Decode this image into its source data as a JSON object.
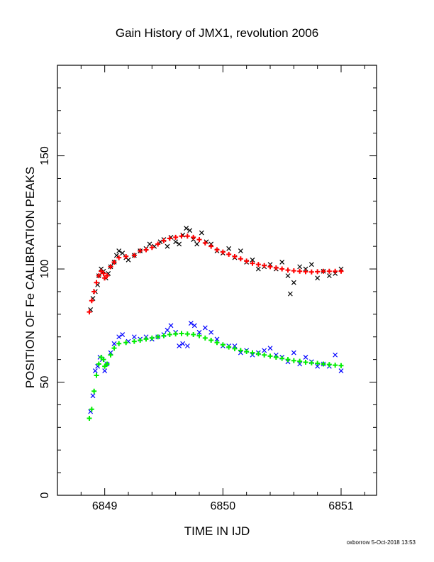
{
  "chart_data": {
    "type": "scatter",
    "title": "Gain History of JMX1, revolution 2006",
    "xlabel": "TIME IN IJD",
    "ylabel": "POSITION OF Fe CALIBRATION PEAKS",
    "xlim": [
      6848.6,
      6851.3
    ],
    "ylim": [
      0,
      190
    ],
    "x_ticks": [
      6849,
      6850,
      6851
    ],
    "x_tick_labels": [
      "6849",
      "6850",
      "6851"
    ],
    "y_ticks": [
      0,
      50,
      100,
      150
    ],
    "y_tick_labels": [
      "0",
      "50",
      "100",
      "150"
    ],
    "grid": false,
    "legend": "none",
    "series": [
      {
        "marker": "x",
        "color": "#000000",
        "points": [
          [
            6848.88,
            82
          ],
          [
            6848.9,
            87
          ],
          [
            6848.92,
            90
          ],
          [
            6848.94,
            93
          ],
          [
            6848.95,
            97
          ],
          [
            6848.97,
            100
          ],
          [
            6848.99,
            99
          ],
          [
            6849.01,
            96
          ],
          [
            6849.03,
            98
          ],
          [
            6849.05,
            101
          ],
          [
            6849.08,
            103
          ],
          [
            6849.1,
            106
          ],
          [
            6849.12,
            108
          ],
          [
            6849.15,
            107
          ],
          [
            6849.18,
            105
          ],
          [
            6849.2,
            104
          ],
          [
            6849.25,
            106
          ],
          [
            6849.3,
            108
          ],
          [
            6849.35,
            109
          ],
          [
            6849.38,
            111
          ],
          [
            6849.42,
            110
          ],
          [
            6849.47,
            112
          ],
          [
            6849.5,
            113
          ],
          [
            6849.53,
            110
          ],
          [
            6849.56,
            114
          ],
          [
            6849.6,
            112
          ],
          [
            6849.63,
            111
          ],
          [
            6849.66,
            115
          ],
          [
            6849.69,
            118
          ],
          [
            6849.72,
            117
          ],
          [
            6849.75,
            113
          ],
          [
            6849.78,
            111
          ],
          [
            6849.82,
            116
          ],
          [
            6849.86,
            112
          ],
          [
            6849.9,
            111
          ],
          [
            6849.95,
            108
          ],
          [
            6850.0,
            107
          ],
          [
            6850.05,
            109
          ],
          [
            6850.1,
            105
          ],
          [
            6850.15,
            108
          ],
          [
            6850.2,
            103
          ],
          [
            6850.25,
            104
          ],
          [
            6850.3,
            100
          ],
          [
            6850.35,
            101
          ],
          [
            6850.4,
            102
          ],
          [
            6850.45,
            100
          ],
          [
            6850.5,
            103
          ],
          [
            6850.55,
            97
          ],
          [
            6850.57,
            89
          ],
          [
            6850.6,
            94
          ],
          [
            6850.65,
            101
          ],
          [
            6850.7,
            100
          ],
          [
            6850.75,
            102
          ],
          [
            6850.8,
            96
          ],
          [
            6850.85,
            99
          ],
          [
            6850.9,
            97
          ],
          [
            6850.95,
            98
          ],
          [
            6851.0,
            100
          ]
        ]
      },
      {
        "marker": "+",
        "color": "#ff0000",
        "points": [
          [
            6848.87,
            81
          ],
          [
            6848.89,
            86
          ],
          [
            6848.91,
            90
          ],
          [
            6848.93,
            94
          ],
          [
            6848.95,
            97
          ],
          [
            6848.97,
            99
          ],
          [
            6848.99,
            98
          ],
          [
            6849.0,
            96
          ],
          [
            6849.02,
            97
          ],
          [
            6849.05,
            101
          ],
          [
            6849.08,
            103
          ],
          [
            6849.12,
            105
          ],
          [
            6849.18,
            105.5
          ],
          [
            6849.25,
            106
          ],
          [
            6849.3,
            108
          ],
          [
            6849.35,
            108.5
          ],
          [
            6849.4,
            109.5
          ],
          [
            6849.45,
            111
          ],
          [
            6849.5,
            112.5
          ],
          [
            6849.55,
            113.5
          ],
          [
            6849.6,
            114
          ],
          [
            6849.65,
            114.5
          ],
          [
            6849.7,
            114.5
          ],
          [
            6849.75,
            114
          ],
          [
            6849.8,
            113
          ],
          [
            6849.85,
            111.5
          ],
          [
            6849.9,
            110
          ],
          [
            6849.95,
            108.5
          ],
          [
            6850.0,
            107.5
          ],
          [
            6850.05,
            106.5
          ],
          [
            6850.1,
            105.5
          ],
          [
            6850.15,
            104.5
          ],
          [
            6850.2,
            103.5
          ],
          [
            6850.25,
            102.5
          ],
          [
            6850.3,
            102
          ],
          [
            6850.35,
            101.5
          ],
          [
            6850.4,
            101
          ],
          [
            6850.45,
            100.5
          ],
          [
            6850.5,
            100
          ],
          [
            6850.55,
            99.5
          ],
          [
            6850.6,
            99.2
          ],
          [
            6850.65,
            99
          ],
          [
            6850.7,
            98.8
          ],
          [
            6850.75,
            98.7
          ],
          [
            6850.8,
            98.8
          ],
          [
            6850.85,
            99
          ],
          [
            6850.9,
            99
          ],
          [
            6850.95,
            99
          ],
          [
            6851.0,
            99
          ]
        ]
      },
      {
        "marker": "x",
        "color": "#0000ff",
        "points": [
          [
            6848.88,
            37
          ],
          [
            6848.9,
            44
          ],
          [
            6848.92,
            55
          ],
          [
            6848.94,
            57
          ],
          [
            6848.96,
            61
          ],
          [
            6848.98,
            60
          ],
          [
            6849.0,
            55
          ],
          [
            6849.02,
            58
          ],
          [
            6849.05,
            63
          ],
          [
            6849.08,
            67
          ],
          [
            6849.12,
            70
          ],
          [
            6849.15,
            71
          ],
          [
            6849.2,
            68
          ],
          [
            6849.25,
            70
          ],
          [
            6849.3,
            69
          ],
          [
            6849.35,
            70
          ],
          [
            6849.4,
            69
          ],
          [
            6849.45,
            70
          ],
          [
            6849.5,
            71
          ],
          [
            6849.53,
            73
          ],
          [
            6849.56,
            75
          ],
          [
            6849.6,
            72
          ],
          [
            6849.63,
            66
          ],
          [
            6849.66,
            67
          ],
          [
            6849.7,
            66
          ],
          [
            6849.73,
            76
          ],
          [
            6849.76,
            75
          ],
          [
            6849.8,
            72
          ],
          [
            6849.85,
            74
          ],
          [
            6849.9,
            72
          ],
          [
            6849.95,
            69
          ],
          [
            6850.0,
            66
          ],
          [
            6850.05,
            66
          ],
          [
            6850.1,
            66
          ],
          [
            6850.15,
            63
          ],
          [
            6850.2,
            64
          ],
          [
            6850.25,
            62
          ],
          [
            6850.3,
            63
          ],
          [
            6850.35,
            64
          ],
          [
            6850.4,
            65
          ],
          [
            6850.45,
            62
          ],
          [
            6850.5,
            61
          ],
          [
            6850.55,
            59
          ],
          [
            6850.6,
            63
          ],
          [
            6850.65,
            58
          ],
          [
            6850.7,
            61
          ],
          [
            6850.75,
            59
          ],
          [
            6850.8,
            57
          ],
          [
            6850.85,
            58
          ],
          [
            6850.9,
            57
          ],
          [
            6850.95,
            62
          ],
          [
            6851.0,
            55
          ]
        ]
      },
      {
        "marker": "+",
        "color": "#00ee00",
        "points": [
          [
            6848.87,
            34
          ],
          [
            6848.89,
            38
          ],
          [
            6848.91,
            46
          ],
          [
            6848.93,
            53
          ],
          [
            6848.95,
            58
          ],
          [
            6848.97,
            61
          ],
          [
            6848.99,
            60
          ],
          [
            6849.0,
            57
          ],
          [
            6849.02,
            58
          ],
          [
            6849.05,
            62
          ],
          [
            6849.08,
            65
          ],
          [
            6849.12,
            67
          ],
          [
            6849.18,
            67.5
          ],
          [
            6849.25,
            68
          ],
          [
            6849.3,
            68.5
          ],
          [
            6849.35,
            69
          ],
          [
            6849.4,
            69.5
          ],
          [
            6849.45,
            70
          ],
          [
            6849.5,
            70.5
          ],
          [
            6849.55,
            71
          ],
          [
            6849.6,
            71.3
          ],
          [
            6849.65,
            71.5
          ],
          [
            6849.7,
            71.3
          ],
          [
            6849.75,
            71
          ],
          [
            6849.8,
            70.5
          ],
          [
            6849.85,
            69.5
          ],
          [
            6849.9,
            68.5
          ],
          [
            6849.95,
            67.5
          ],
          [
            6850.0,
            66.5
          ],
          [
            6850.05,
            65.5
          ],
          [
            6850.1,
            64.8
          ],
          [
            6850.15,
            64
          ],
          [
            6850.2,
            63.5
          ],
          [
            6850.25,
            63
          ],
          [
            6850.3,
            62.5
          ],
          [
            6850.35,
            62
          ],
          [
            6850.4,
            61.5
          ],
          [
            6850.45,
            61
          ],
          [
            6850.5,
            60.5
          ],
          [
            6850.55,
            60
          ],
          [
            6850.6,
            59.5
          ],
          [
            6850.65,
            59.2
          ],
          [
            6850.7,
            58.8
          ],
          [
            6850.75,
            58.5
          ],
          [
            6850.8,
            58.3
          ],
          [
            6850.85,
            58
          ],
          [
            6850.9,
            57.8
          ],
          [
            6850.95,
            57.5
          ],
          [
            6851.0,
            57.3
          ]
        ]
      }
    ],
    "footer": "oxborrow  5-Oct-2018 13:53"
  }
}
